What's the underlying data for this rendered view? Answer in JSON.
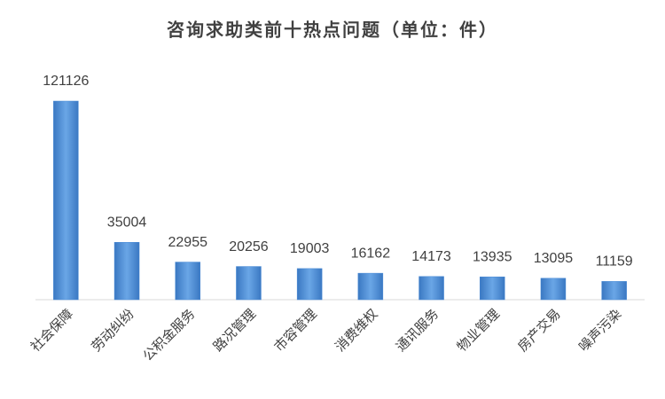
{
  "chart_data": {
    "type": "bar",
    "title": "咨询求助类前十热点问题（单位：件）",
    "categories": [
      "社会保障",
      "劳动纠纷",
      "公积金服务",
      "路况管理",
      "市容管理",
      "消费维权",
      "通讯服务",
      "物业管理",
      "房产交易",
      "噪声污染"
    ],
    "values": [
      121126,
      35004,
      22955,
      20256,
      19003,
      16162,
      14173,
      13935,
      13095,
      11159
    ],
    "color": "#4a8bd6"
  }
}
